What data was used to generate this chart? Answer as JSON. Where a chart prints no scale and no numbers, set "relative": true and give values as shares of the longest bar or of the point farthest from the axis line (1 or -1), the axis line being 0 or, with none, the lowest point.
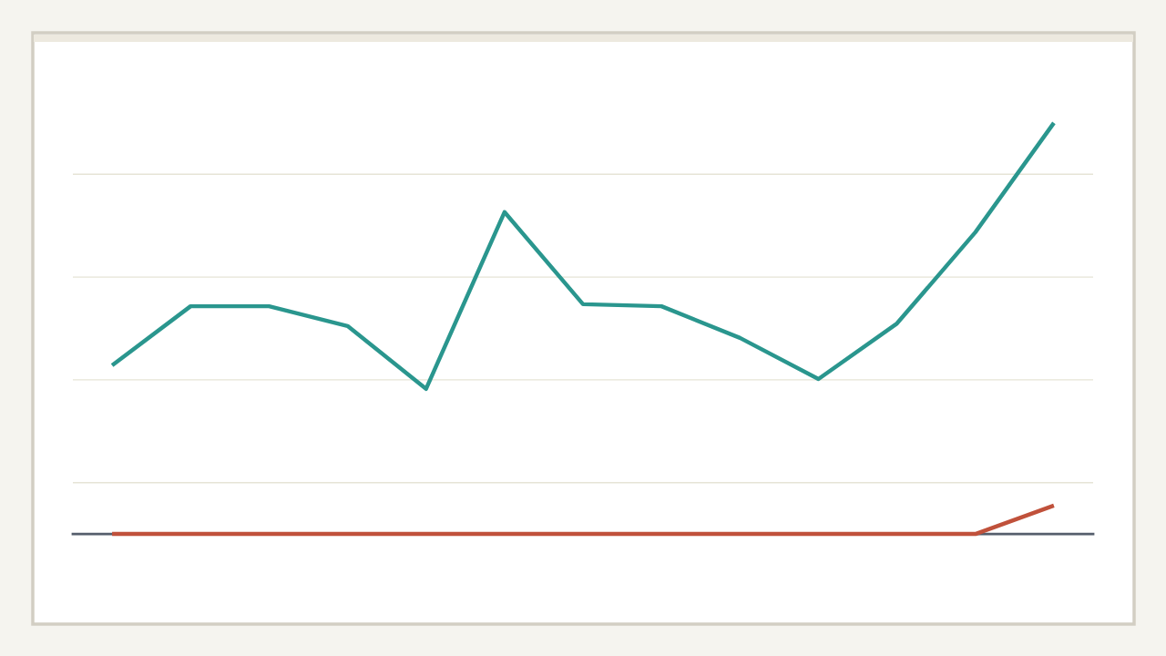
{
  "chart_data": {
    "type": "line",
    "relative": true,
    "grid": "y",
    "categories": [
      null,
      null,
      null,
      null,
      null,
      null,
      null,
      null,
      null,
      null,
      null,
      null,
      null
    ],
    "series": [
      {
        "color": "#2a968e",
        "values": [
          0.41,
          0.554,
          0.554,
          0.506,
          0.353,
          0.783,
          0.559,
          0.554,
          0.477,
          0.377,
          0.512,
          0.734,
          1
        ]
      },
      {
        "color": "#c0513b",
        "values": [
          0,
          0,
          0,
          0,
          0,
          0,
          0,
          0,
          0,
          0,
          0,
          0,
          0.069
        ]
      }
    ]
  }
}
